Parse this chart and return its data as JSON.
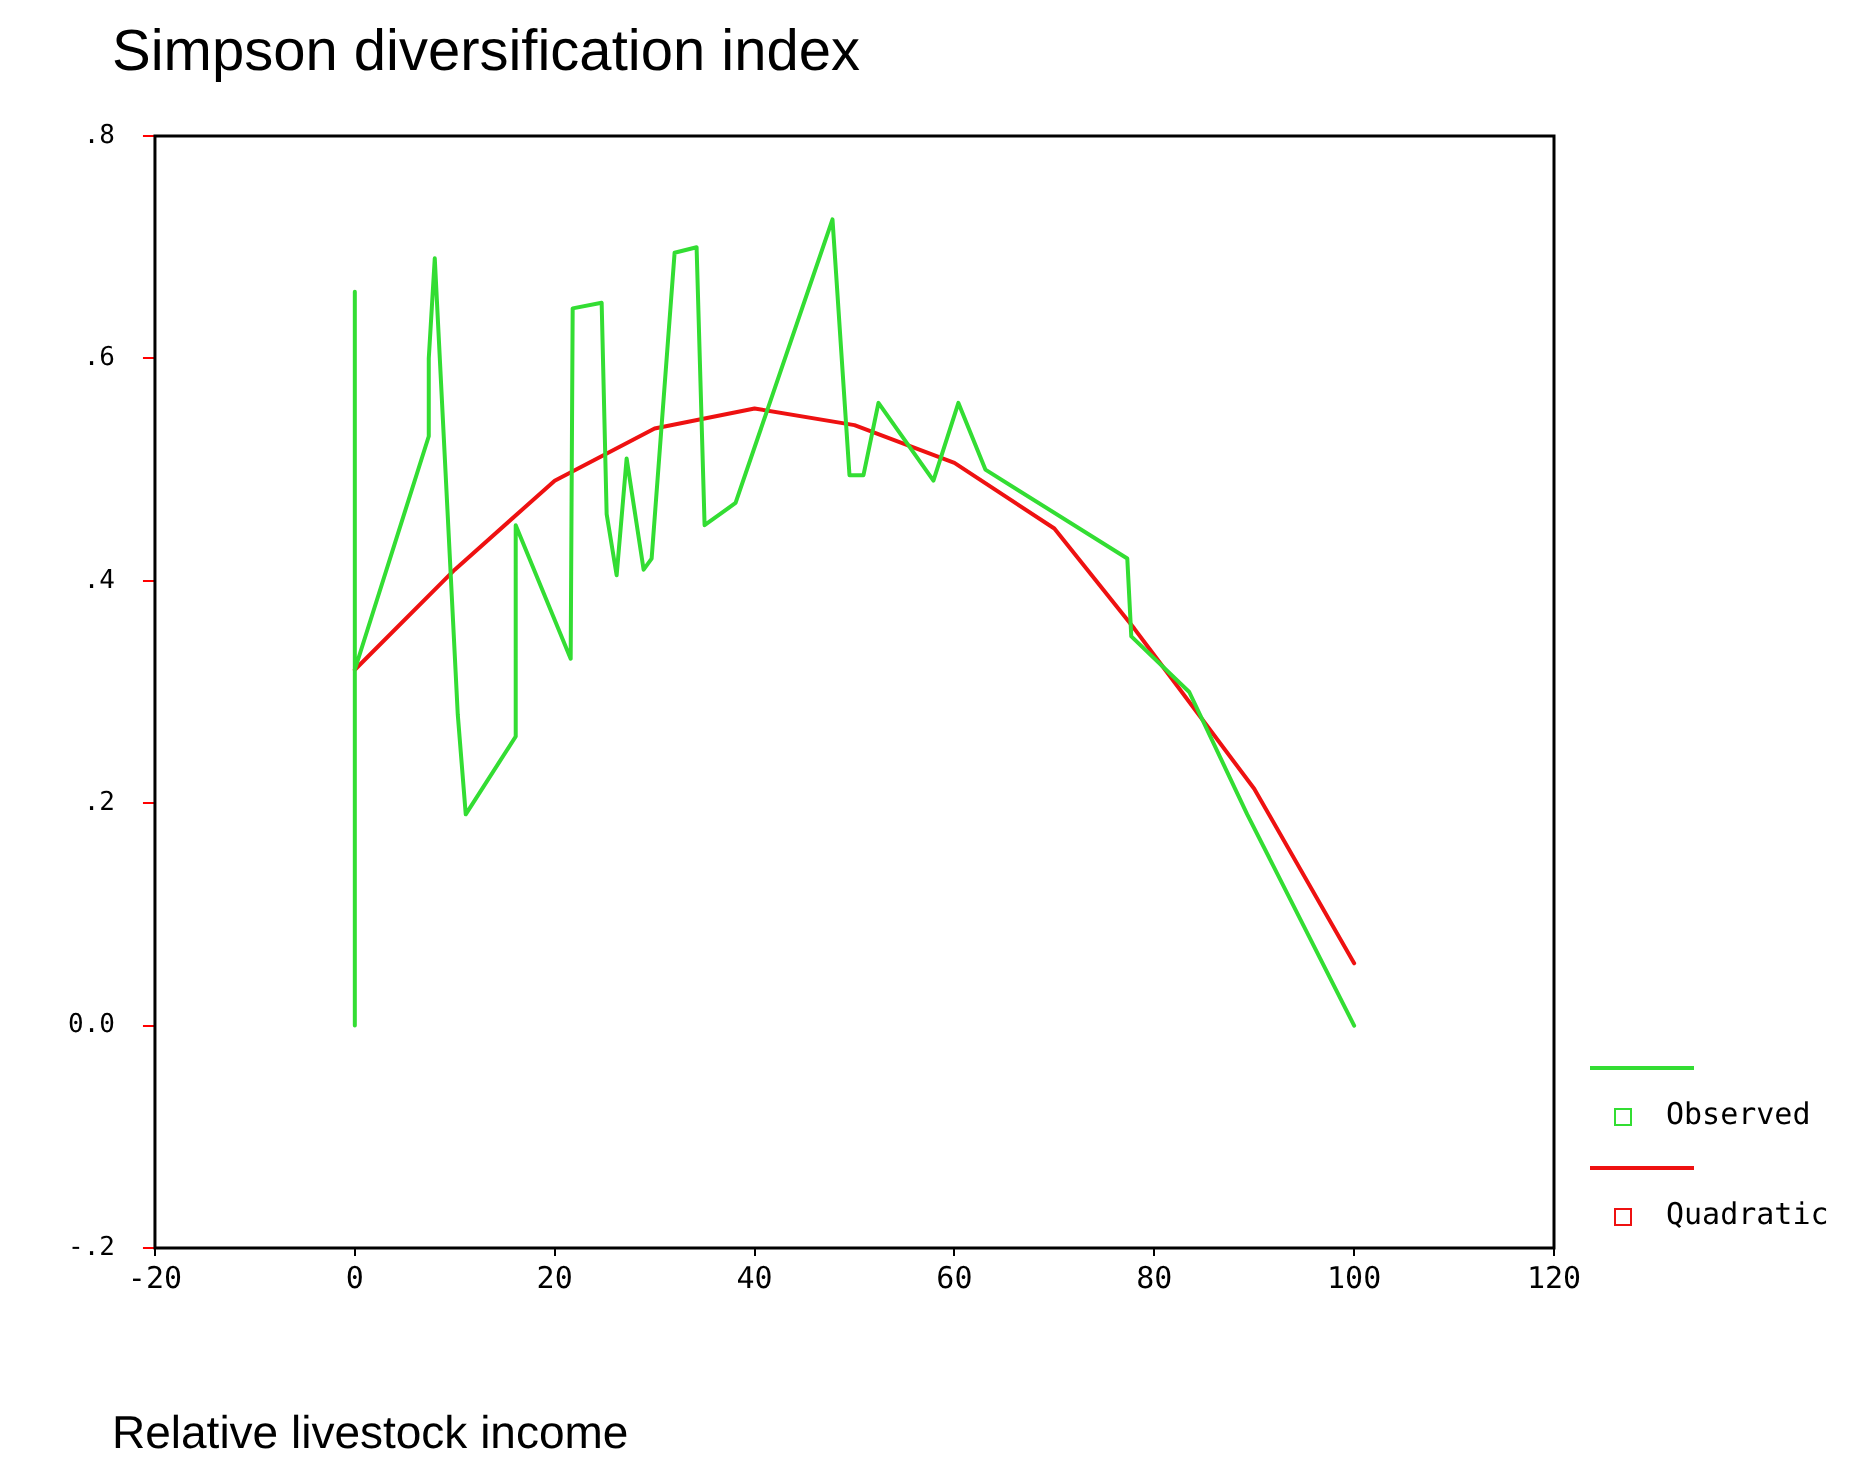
{
  "chart_data": {
    "type": "line",
    "ylabel": "Simpson diversification index",
    "xlabel": "Relative livestock income",
    "xlim": [
      -20,
      120
    ],
    "xticks": [
      -20,
      0,
      20,
      40,
      60,
      80,
      100,
      120
    ],
    "ylim": [
      -0.2,
      0.8
    ],
    "yticks": [
      {
        "value": -0.2,
        "label": "-.2"
      },
      {
        "value": 0,
        "label": "0.0"
      },
      {
        "value": 0.2,
        "label": ".2"
      },
      {
        "value": 0.4,
        "label": ".4"
      },
      {
        "value": 0.6,
        "label": ".6"
      },
      {
        "value": 0.8,
        "label": ".8"
      }
    ],
    "grid": false,
    "legend": "bottom right",
    "marker": "none",
    "line_style": "solid",
    "series": [
      {
        "name": "Observed",
        "color": "#33dd33",
        "x": [
          0,
          0,
          0,
          7.4,
          7.4,
          8.0,
          10.3,
          11.1,
          16.1,
          16.1,
          21.6,
          21.8,
          24.7,
          25.2,
          26.2,
          27.2,
          28.9,
          29.7,
          32,
          34.2,
          35,
          38.1,
          47.8,
          49.5,
          50.9,
          52.4,
          57.9,
          60.4,
          63.1,
          77.3,
          77.7,
          83.5,
          89.3,
          100
        ],
        "values": [
          0.0,
          0.66,
          0.32,
          0.53,
          0.6,
          0.69,
          0.28,
          0.19,
          0.26,
          0.45,
          0.33,
          0.645,
          0.65,
          0.46,
          0.405,
          0.51,
          0.41,
          0.42,
          0.695,
          0.7,
          0.45,
          0.47,
          0.725,
          0.495,
          0.495,
          0.56,
          0.49,
          0.56,
          0.5,
          0.42,
          0.35,
          0.3,
          0.19,
          0.0
        ]
      },
      {
        "name": "Quadratic",
        "color": "#ee1111",
        "x": [
          0,
          10,
          20,
          30,
          40,
          50,
          60,
          70,
          78,
          80,
          90,
          100
        ],
        "values": [
          0.32,
          0.41,
          0.49,
          0.537,
          0.555,
          0.54,
          0.506,
          0.447,
          0.357,
          0.333,
          0.213,
          0.056
        ]
      }
    ]
  }
}
